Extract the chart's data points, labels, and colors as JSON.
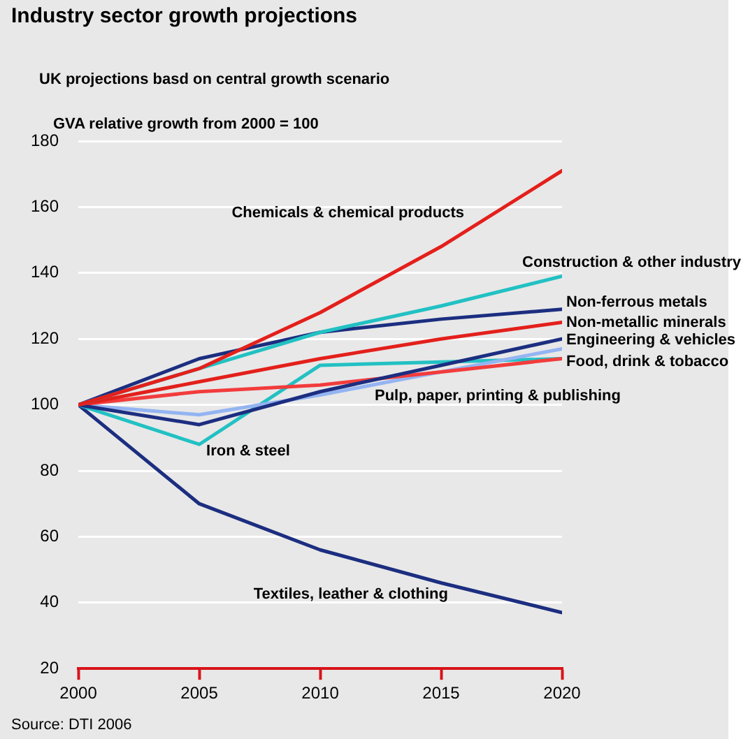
{
  "chart_data": {
    "type": "line",
    "title": "Industry sector growth projections",
    "subtitle": "UK projections basd on central growth scenario",
    "ylabel": "GVA relative growth from 2000 = 100",
    "annotations": [
      "Source: DTI 2006"
    ],
    "x": [
      2000,
      2005,
      2010,
      2015,
      2020
    ],
    "xlim": [
      2000,
      2020
    ],
    "xticks": [
      2000,
      2005,
      2010,
      2015,
      2020
    ],
    "ylim": [
      20,
      180
    ],
    "yticks": [
      20,
      40,
      60,
      80,
      100,
      120,
      140,
      160,
      180
    ],
    "grid": "y",
    "legend": false,
    "marker": "none",
    "line_style": "solid",
    "series": [
      {
        "name": "Chemicals & chemical products",
        "color": "#e3201b",
        "values": [
          100,
          111,
          128,
          148,
          171
        ]
      },
      {
        "name": "Construction & other industry",
        "color": "#22c1c3",
        "values": [
          100,
          111,
          122,
          130,
          139
        ]
      },
      {
        "name": "Non-ferrous metals",
        "color": "#1c2e80",
        "values": [
          100,
          114,
          122,
          126,
          129
        ]
      },
      {
        "name": "Non-metallic minerals",
        "color": "#e3201b",
        "values": [
          100,
          107,
          114,
          120,
          125
        ]
      },
      {
        "name": "Engineering & vehicles",
        "color": "#1c2e80",
        "values": [
          100,
          94,
          104,
          112,
          120
        ]
      },
      {
        "name": "Food, drink & tobacco",
        "color": "#f23c3c",
        "values": [
          100,
          104,
          106,
          110,
          114
        ]
      },
      {
        "name": "Pulp, paper, printing & publishing",
        "color": "#94b4f2",
        "values": [
          100,
          97,
          103,
          110,
          117
        ]
      },
      {
        "name": "Iron & steel",
        "color": "#22c1c3",
        "values": [
          100,
          88,
          112,
          113,
          114
        ]
      },
      {
        "name": "Textiles, leather & clothing",
        "color": "#1c2e80",
        "values": [
          100,
          70,
          56,
          46,
          37
        ]
      }
    ]
  }
}
